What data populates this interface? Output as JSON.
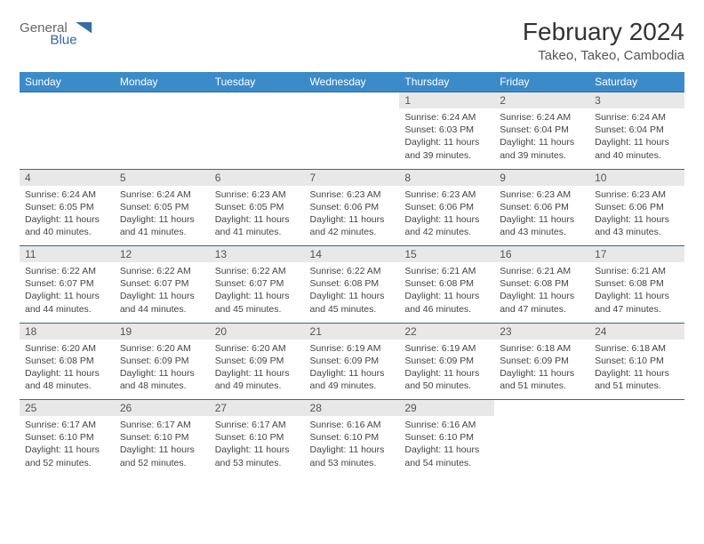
{
  "brand": {
    "word1": "General",
    "word2": "Blue",
    "color1": "#666666",
    "color2": "#336699",
    "triangle": "#2f6fa8"
  },
  "title": "February 2024",
  "location": "Takeo, Takeo, Cambodia",
  "colors": {
    "header_bg": "#3b8bc9",
    "header_fg": "#ffffff",
    "daynum_bg": "#e8e8e8",
    "rule": "#336699"
  },
  "day_headers": [
    "Sunday",
    "Monday",
    "Tuesday",
    "Wednesday",
    "Thursday",
    "Friday",
    "Saturday"
  ],
  "weeks": [
    {
      "nums": [
        "",
        "",
        "",
        "",
        "1",
        "2",
        "3"
      ],
      "cells": [
        null,
        null,
        null,
        null,
        {
          "sunrise": "Sunrise: 6:24 AM",
          "sunset": "Sunset: 6:03 PM",
          "daylight": "Daylight: 11 hours and 39 minutes."
        },
        {
          "sunrise": "Sunrise: 6:24 AM",
          "sunset": "Sunset: 6:04 PM",
          "daylight": "Daylight: 11 hours and 39 minutes."
        },
        {
          "sunrise": "Sunrise: 6:24 AM",
          "sunset": "Sunset: 6:04 PM",
          "daylight": "Daylight: 11 hours and 40 minutes."
        }
      ]
    },
    {
      "nums": [
        "4",
        "5",
        "6",
        "7",
        "8",
        "9",
        "10"
      ],
      "cells": [
        {
          "sunrise": "Sunrise: 6:24 AM",
          "sunset": "Sunset: 6:05 PM",
          "daylight": "Daylight: 11 hours and 40 minutes."
        },
        {
          "sunrise": "Sunrise: 6:24 AM",
          "sunset": "Sunset: 6:05 PM",
          "daylight": "Daylight: 11 hours and 41 minutes."
        },
        {
          "sunrise": "Sunrise: 6:23 AM",
          "sunset": "Sunset: 6:05 PM",
          "daylight": "Daylight: 11 hours and 41 minutes."
        },
        {
          "sunrise": "Sunrise: 6:23 AM",
          "sunset": "Sunset: 6:06 PM",
          "daylight": "Daylight: 11 hours and 42 minutes."
        },
        {
          "sunrise": "Sunrise: 6:23 AM",
          "sunset": "Sunset: 6:06 PM",
          "daylight": "Daylight: 11 hours and 42 minutes."
        },
        {
          "sunrise": "Sunrise: 6:23 AM",
          "sunset": "Sunset: 6:06 PM",
          "daylight": "Daylight: 11 hours and 43 minutes."
        },
        {
          "sunrise": "Sunrise: 6:23 AM",
          "sunset": "Sunset: 6:06 PM",
          "daylight": "Daylight: 11 hours and 43 minutes."
        }
      ]
    },
    {
      "nums": [
        "11",
        "12",
        "13",
        "14",
        "15",
        "16",
        "17"
      ],
      "cells": [
        {
          "sunrise": "Sunrise: 6:22 AM",
          "sunset": "Sunset: 6:07 PM",
          "daylight": "Daylight: 11 hours and 44 minutes."
        },
        {
          "sunrise": "Sunrise: 6:22 AM",
          "sunset": "Sunset: 6:07 PM",
          "daylight": "Daylight: 11 hours and 44 minutes."
        },
        {
          "sunrise": "Sunrise: 6:22 AM",
          "sunset": "Sunset: 6:07 PM",
          "daylight": "Daylight: 11 hours and 45 minutes."
        },
        {
          "sunrise": "Sunrise: 6:22 AM",
          "sunset": "Sunset: 6:08 PM",
          "daylight": "Daylight: 11 hours and 45 minutes."
        },
        {
          "sunrise": "Sunrise: 6:21 AM",
          "sunset": "Sunset: 6:08 PM",
          "daylight": "Daylight: 11 hours and 46 minutes."
        },
        {
          "sunrise": "Sunrise: 6:21 AM",
          "sunset": "Sunset: 6:08 PM",
          "daylight": "Daylight: 11 hours and 47 minutes."
        },
        {
          "sunrise": "Sunrise: 6:21 AM",
          "sunset": "Sunset: 6:08 PM",
          "daylight": "Daylight: 11 hours and 47 minutes."
        }
      ]
    },
    {
      "nums": [
        "18",
        "19",
        "20",
        "21",
        "22",
        "23",
        "24"
      ],
      "cells": [
        {
          "sunrise": "Sunrise: 6:20 AM",
          "sunset": "Sunset: 6:08 PM",
          "daylight": "Daylight: 11 hours and 48 minutes."
        },
        {
          "sunrise": "Sunrise: 6:20 AM",
          "sunset": "Sunset: 6:09 PM",
          "daylight": "Daylight: 11 hours and 48 minutes."
        },
        {
          "sunrise": "Sunrise: 6:20 AM",
          "sunset": "Sunset: 6:09 PM",
          "daylight": "Daylight: 11 hours and 49 minutes."
        },
        {
          "sunrise": "Sunrise: 6:19 AM",
          "sunset": "Sunset: 6:09 PM",
          "daylight": "Daylight: 11 hours and 49 minutes."
        },
        {
          "sunrise": "Sunrise: 6:19 AM",
          "sunset": "Sunset: 6:09 PM",
          "daylight": "Daylight: 11 hours and 50 minutes."
        },
        {
          "sunrise": "Sunrise: 6:18 AM",
          "sunset": "Sunset: 6:09 PM",
          "daylight": "Daylight: 11 hours and 51 minutes."
        },
        {
          "sunrise": "Sunrise: 6:18 AM",
          "sunset": "Sunset: 6:10 PM",
          "daylight": "Daylight: 11 hours and 51 minutes."
        }
      ]
    },
    {
      "nums": [
        "25",
        "26",
        "27",
        "28",
        "29",
        "",
        ""
      ],
      "cells": [
        {
          "sunrise": "Sunrise: 6:17 AM",
          "sunset": "Sunset: 6:10 PM",
          "daylight": "Daylight: 11 hours and 52 minutes."
        },
        {
          "sunrise": "Sunrise: 6:17 AM",
          "sunset": "Sunset: 6:10 PM",
          "daylight": "Daylight: 11 hours and 52 minutes."
        },
        {
          "sunrise": "Sunrise: 6:17 AM",
          "sunset": "Sunset: 6:10 PM",
          "daylight": "Daylight: 11 hours and 53 minutes."
        },
        {
          "sunrise": "Sunrise: 6:16 AM",
          "sunset": "Sunset: 6:10 PM",
          "daylight": "Daylight: 11 hours and 53 minutes."
        },
        {
          "sunrise": "Sunrise: 6:16 AM",
          "sunset": "Sunset: 6:10 PM",
          "daylight": "Daylight: 11 hours and 54 minutes."
        },
        null,
        null
      ]
    }
  ]
}
